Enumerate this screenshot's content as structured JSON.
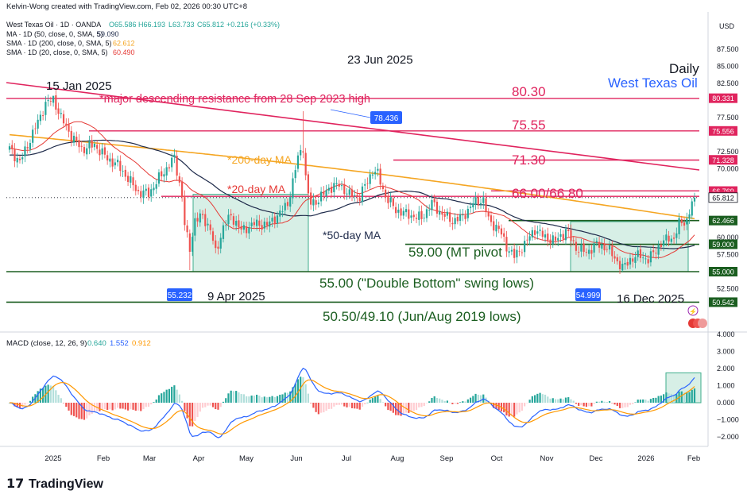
{
  "header": {
    "creator": "Kelvin-Wong created with TradingView.com, Feb 02, 2026 00:30 UTC+8",
    "ohlc_label": "West Texas Oil · 1D · OANDA",
    "o": "O65.586",
    "h": "H66.193",
    "l": "L63.733",
    "c": "C65.812",
    "change": "+0.216 (+0.33%)",
    "ma_lines": [
      {
        "label": "MA · 1D (50, close, 0, SMA, 5)",
        "value": "59.090",
        "color": "#1e2a4a"
      },
      {
        "label": "SMA · 1D (200, close, 0, SMA, 5)",
        "value": "62.612",
        "color": "#f5a623"
      },
      {
        "label": "SMA · 1D (20, close, 0, SMA, 5)",
        "value": "60.490",
        "color": "#e53935"
      }
    ],
    "currency": "USD"
  },
  "labels": {
    "daily": "Daily",
    "instrument": "West Texas Oil",
    "date_top": "23 Jun 2025",
    "date_jan": "15 Jan 2025",
    "date_apr": "9 Apr 2025",
    "date_dec": "16 Dec 2025",
    "resistance": "*major descending resistance from 28 Sep 2023 high",
    "ma200": "*200-day MA",
    "ma20": "*20-day MA",
    "ma50": "*50-day MA",
    "lvl_8030": "80.30",
    "lvl_7555": "75.55",
    "lvl_7130": "71.30",
    "lvl_6600": "66.00/66.80",
    "lvl_5900": "59.00 (MT pivot",
    "lvl_5500": "55.00 (\"Double Bottom\" swing lows)",
    "lvl_5050": "50.50/49.10 (Jun/Aug 2019 lows)",
    "callout_peak": "78.436",
    "callout_apr": "55.232",
    "callout_dec": "54.999"
  },
  "price_axis": {
    "ticks": [
      "87.500",
      "85.000",
      "82.500",
      "80.000",
      "77.500",
      "75.000",
      "72.500",
      "70.000",
      "67.500",
      "65.000",
      "62.500",
      "60.000",
      "57.500",
      "55.000",
      "52.500",
      "50.000"
    ],
    "tags": [
      {
        "text": "80.331",
        "value": 80.331,
        "color": "#e0245e"
      },
      {
        "text": "75.556",
        "value": 75.556,
        "color": "#e0245e"
      },
      {
        "text": "71.328",
        "value": 71.328,
        "color": "#e0245e"
      },
      {
        "text": "66.769",
        "value": 66.769,
        "color": "#e0245e"
      },
      {
        "text": "66.029",
        "value": 66.029,
        "color": "#e0245e"
      },
      {
        "text": "65.812",
        "value": 65.812,
        "color": "#ffffff"
      },
      {
        "text": "62.466",
        "value": 62.466,
        "color": "#1b5e20"
      },
      {
        "text": "59.000",
        "value": 59.0,
        "color": "#1b5e20"
      },
      {
        "text": "55.000",
        "value": 55.0,
        "color": "#1b5e20"
      },
      {
        "text": "50.542",
        "value": 50.542,
        "color": "#1b5e20"
      }
    ]
  },
  "macd": {
    "label": "MACD (close, 12, 26, 9)",
    "v1": "0.640",
    "v2": "1.552",
    "v3": "0.912",
    "ticks": [
      "4.000",
      "3.000",
      "2.000",
      "1.000",
      "0.000",
      "−1.000",
      "−2.000"
    ]
  },
  "time_axis": [
    "2025",
    "Feb",
    "Mar",
    "Apr",
    "May",
    "Jun",
    "Jul",
    "Aug",
    "Sep",
    "Oct",
    "Nov",
    "Dec",
    "2026",
    "Feb"
  ],
  "footer": {
    "brand": "TradingView"
  },
  "colors": {
    "up": "#26a69a",
    "down": "#ef5350",
    "ma200": "#f5a623",
    "ma20": "#e53935",
    "ma50": "#1e2a4a",
    "level_red": "#e0245e",
    "level_green": "#1b5e20",
    "box_fill": "#d7efe6",
    "box_stroke": "#3fae8c",
    "macd_line": "#2962ff",
    "signal_line": "#ff9800"
  },
  "chart_data": {
    "type": "candlestick",
    "title": "West Texas Oil · 1D · OANDA",
    "ylabel": "USD",
    "ylim": [
      49.5,
      89.0
    ],
    "key_points": [
      {
        "label": "15 Jan 2025",
        "price": 80.3
      },
      {
        "label": "9 Apr 2025",
        "price": 55.232
      },
      {
        "label": "23 Jun 2025",
        "price": 78.436
      },
      {
        "label": "16 Dec 2025",
        "price": 54.999
      }
    ],
    "levels": [
      80.3,
      75.55,
      71.3,
      66.0,
      66.8,
      62.466,
      59.0,
      55.0,
      50.5,
      49.1
    ],
    "monthly_closes": [
      {
        "month": "Jan 2025",
        "close": 72.5
      },
      {
        "month": "Feb 2025",
        "close": 69.8
      },
      {
        "month": "Mar 2025",
        "close": 71.5
      },
      {
        "month": "Apr 2025",
        "close": 58.3
      },
      {
        "month": "May 2025",
        "close": 60.8
      },
      {
        "month": "Jun 2025",
        "close": 65.1
      },
      {
        "month": "Jul 2025",
        "close": 69.3
      },
      {
        "month": "Aug 2025",
        "close": 64.0
      },
      {
        "month": "Sep 2025",
        "close": 62.4
      },
      {
        "month": "Oct 2025",
        "close": 60.9
      },
      {
        "month": "Nov 2025",
        "close": 58.6
      },
      {
        "month": "Dec 2025",
        "close": 57.4
      },
      {
        "month": "Jan 2026",
        "close": 65.812
      }
    ]
  }
}
